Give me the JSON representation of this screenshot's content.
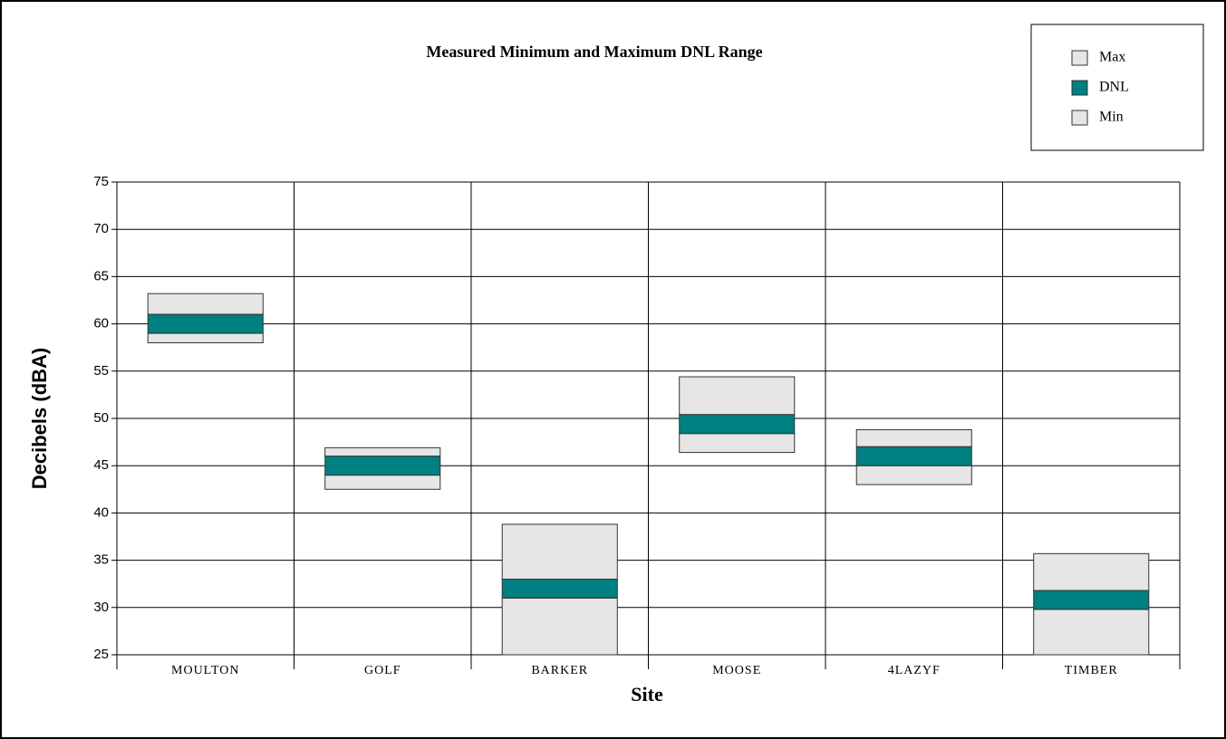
{
  "chart_data": {
    "type": "floating_range",
    "title": "Measured Minimum and Maximum DNL Range",
    "x_label": "Site",
    "y_label": "Decibels (dBA)",
    "categories": [
      "MOULTON",
      "GOLF",
      "BARKER",
      "MOOSE",
      "4LAZYF",
      "TIMBER"
    ],
    "series": [
      {
        "name": "Max",
        "color": "#e6e6e6",
        "values": [
          63.2,
          46.9,
          38.8,
          54.4,
          48.8,
          35.7
        ]
      },
      {
        "name": "DNL",
        "color": "#008080",
        "values": [
          60,
          45,
          32,
          49.4,
          46,
          30.8
        ]
      },
      {
        "name": "Min",
        "color": "#e6e6e6",
        "values": [
          58,
          42.5,
          25,
          46.4,
          43,
          25
        ]
      }
    ],
    "ylim": [
      25,
      75
    ],
    "yticks": [
      25,
      30,
      35,
      40,
      45,
      50,
      55,
      60,
      65,
      70,
      75
    ],
    "grid": true,
    "legend": "top-right"
  }
}
